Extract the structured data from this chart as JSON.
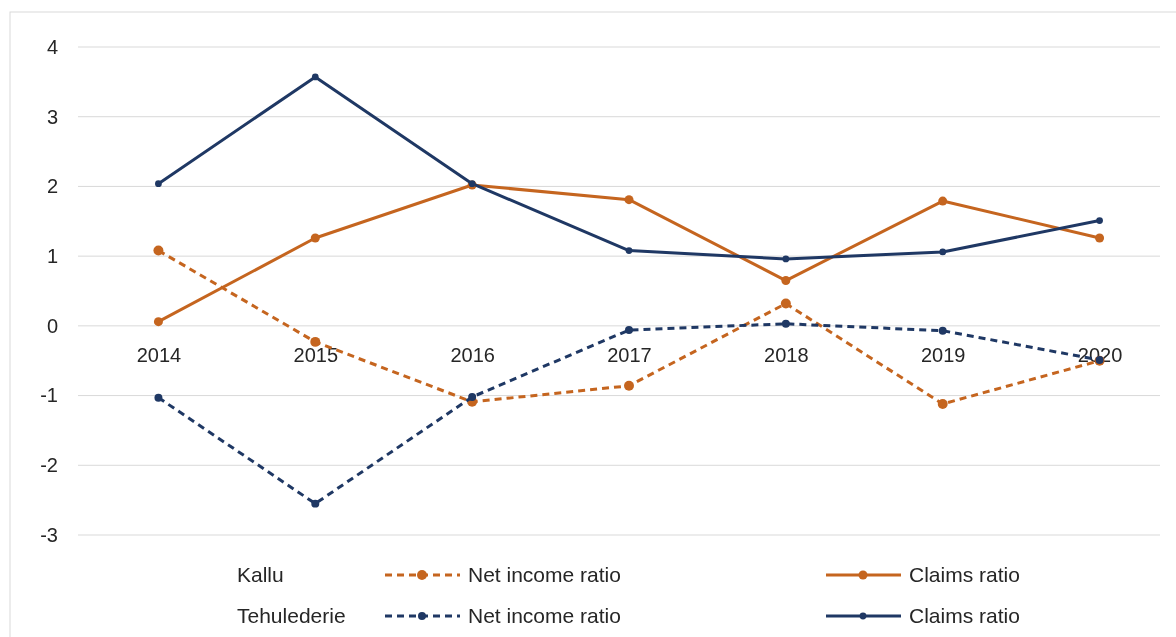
{
  "chart_data": {
    "type": "line",
    "categories": [
      "2014",
      "2015",
      "2016",
      "2017",
      "2018",
      "2019",
      "2020"
    ],
    "series": [
      {
        "name": "Net income ratio",
        "color": "#c5651f",
        "line_style": "dashed",
        "values": [
          1.08,
          -0.23,
          -1.09,
          -0.86,
          0.32,
          -1.12,
          -0.5
        ]
      },
      {
        "name": "Claims ratio",
        "color": "#c5651f",
        "line_style": "solid",
        "values": [
          0.06,
          1.26,
          2.02,
          1.81,
          0.65,
          1.79,
          1.26
        ]
      },
      {
        "name": "Net income ratio",
        "color": "#1f3864",
        "line_style": "dashed",
        "values": [
          -1.03,
          -2.55,
          -1.02,
          -0.06,
          0.03,
          -0.07,
          -0.49
        ]
      },
      {
        "name": "Claims ratio",
        "color": "#1f3864",
        "line_style": "solid",
        "values": [
          2.04,
          3.57,
          2.04,
          1.08,
          0.96,
          1.06,
          1.51
        ]
      }
    ],
    "annotations": [
      "Kallu",
      "Tehulederie"
    ],
    "ylim": [
      -3,
      4
    ],
    "yticks": [
      -3,
      -2,
      -1,
      0,
      1,
      2,
      3,
      4
    ],
    "grid": "y",
    "marker": "circle",
    "legend": "bottom"
  }
}
